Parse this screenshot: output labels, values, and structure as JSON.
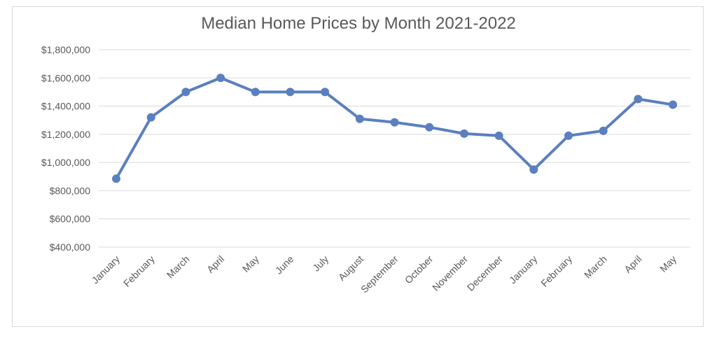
{
  "chart_data": {
    "type": "line",
    "title": "Median Home Prices by Month 2021-2022",
    "xlabel": "",
    "ylabel": "",
    "categories": [
      "January",
      "February",
      "March",
      "April",
      "May",
      "June",
      "July",
      "August",
      "September",
      "October",
      "November",
      "December",
      "January",
      "February",
      "March",
      "April",
      "May"
    ],
    "series": [
      {
        "values": [
          885000,
          1320000,
          1500000,
          1600000,
          1500000,
          1500000,
          1500000,
          1310000,
          1285000,
          1250000,
          1205000,
          1190000,
          950000,
          1190000,
          1225000,
          1450000,
          1410000
        ],
        "color": "#5b7fbf"
      }
    ],
    "ylim": [
      400000,
      1800000
    ],
    "y_ticks": [
      400000,
      600000,
      800000,
      1000000,
      1200000,
      1400000,
      1600000,
      1800000
    ],
    "y_tick_labels": [
      "$400,000",
      "$600,000",
      "$800,000",
      "$1,000,000",
      "$1,200,000",
      "$1,400,000",
      "$1,600,000",
      "$1,800,000"
    ],
    "grid": true,
    "legend": "none"
  }
}
